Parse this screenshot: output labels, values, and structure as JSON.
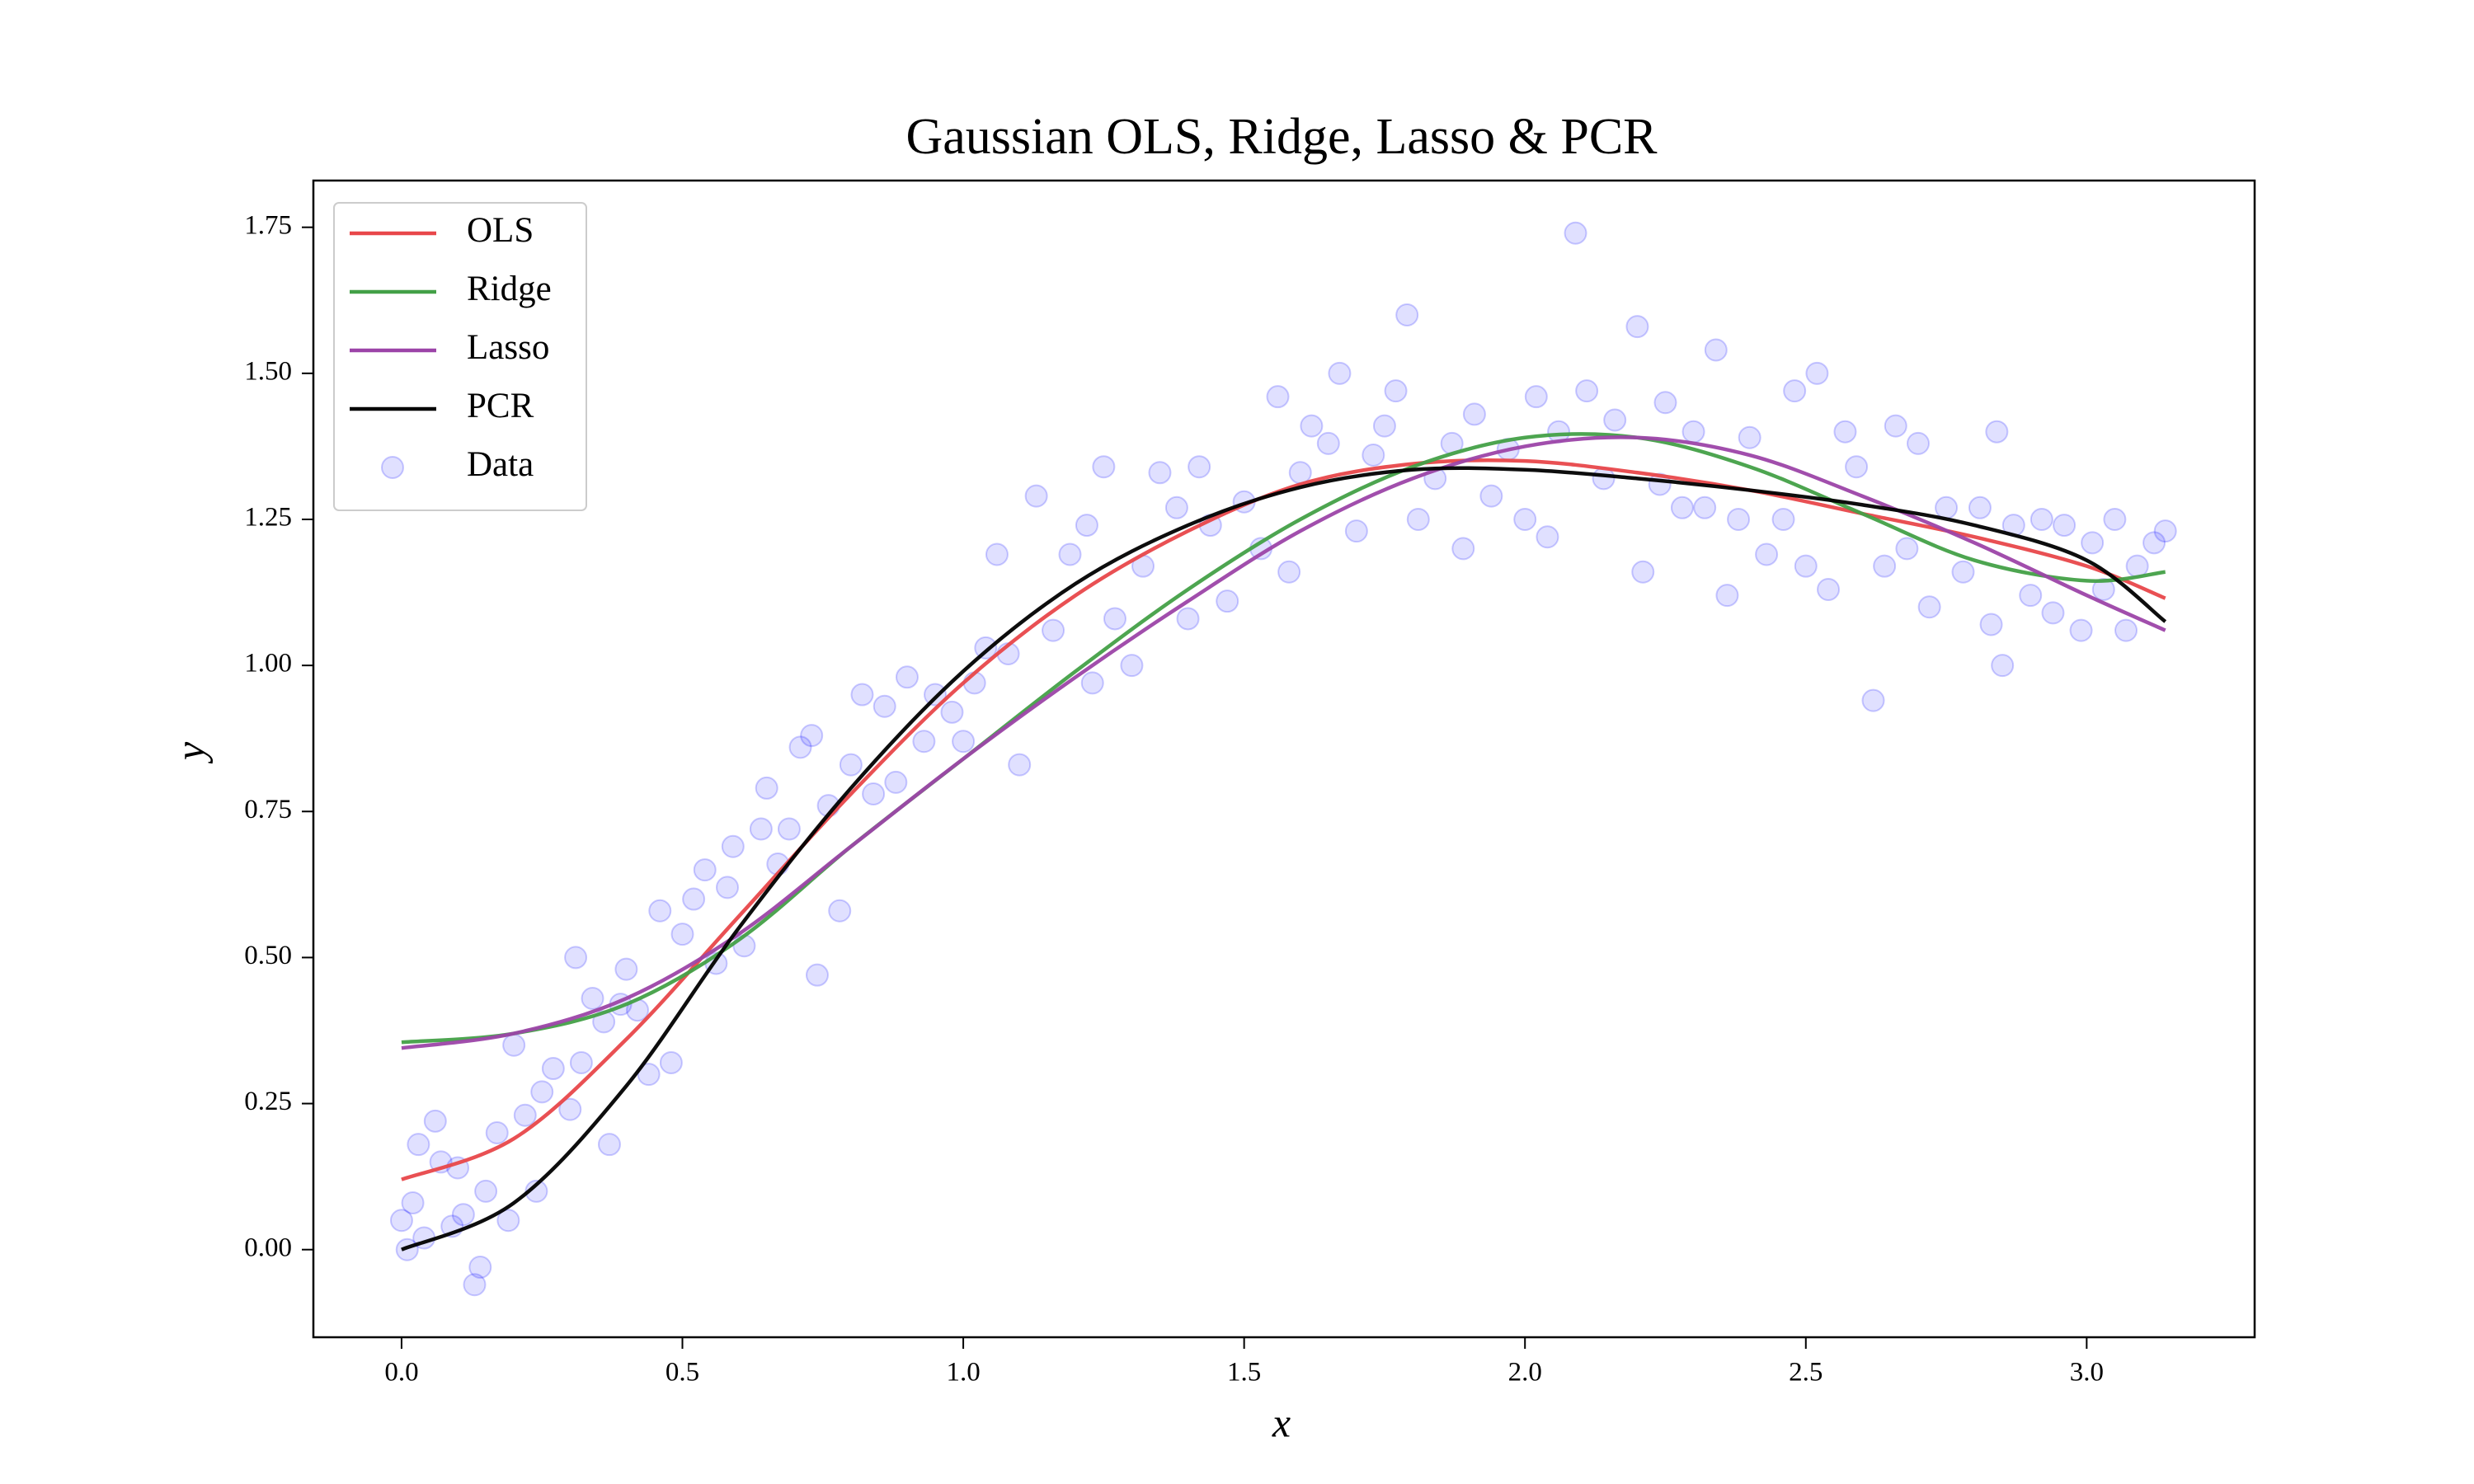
{
  "chart_data": {
    "type": "line",
    "title": "Gaussian OLS, Ridge, Lasso & PCR",
    "xlabel": "x",
    "ylabel": "y",
    "x": [
      0,
      0.2,
      0.4,
      0.6,
      0.8,
      1.0,
      1.2,
      1.4,
      1.6,
      1.8,
      2.0,
      2.2,
      2.4,
      2.6,
      2.8,
      3.0,
      3.14
    ],
    "series": [
      {
        "name": "OLS",
        "color": "#e8474a",
        "values": [
          0.12,
          0.19,
          0.36,
          0.57,
          0.78,
          0.97,
          1.12,
          1.23,
          1.31,
          1.345,
          1.35,
          1.33,
          1.3,
          1.26,
          1.22,
          1.17,
          1.115
        ]
      },
      {
        "name": "Ridge",
        "color": "#43a047",
        "values": [
          0.355,
          0.37,
          0.42,
          0.53,
          0.69,
          0.84,
          0.99,
          1.13,
          1.25,
          1.34,
          1.39,
          1.39,
          1.34,
          1.26,
          1.18,
          1.145,
          1.16
        ]
      },
      {
        "name": "Lasso",
        "color": "#9c44a8",
        "values": [
          0.345,
          0.37,
          0.43,
          0.54,
          0.69,
          0.84,
          0.98,
          1.11,
          1.23,
          1.32,
          1.375,
          1.39,
          1.36,
          1.29,
          1.21,
          1.12,
          1.06
        ]
      },
      {
        "name": "PCR",
        "color": "#000000",
        "values": [
          0.0,
          0.08,
          0.28,
          0.55,
          0.79,
          0.99,
          1.14,
          1.24,
          1.305,
          1.335,
          1.335,
          1.32,
          1.3,
          1.275,
          1.24,
          1.18,
          1.075
        ]
      }
    ],
    "scatter": {
      "name": "Data",
      "color": "#0000ff",
      "x": [
        0.0,
        0.01,
        0.02,
        0.03,
        0.04,
        0.06,
        0.07,
        0.09,
        0.1,
        0.11,
        0.13,
        0.14,
        0.15,
        0.17,
        0.19,
        0.2,
        0.22,
        0.24,
        0.25,
        0.27,
        0.3,
        0.31,
        0.32,
        0.34,
        0.36,
        0.37,
        0.39,
        0.4,
        0.42,
        0.44,
        0.46,
        0.48,
        0.5,
        0.52,
        0.54,
        0.56,
        0.58,
        0.59,
        0.61,
        0.64,
        0.65,
        0.67,
        0.69,
        0.71,
        0.73,
        0.74,
        0.76,
        0.78,
        0.8,
        0.82,
        0.84,
        0.86,
        0.88,
        0.9,
        0.93,
        0.95,
        0.98,
        1.0,
        1.02,
        1.04,
        1.06,
        1.08,
        1.1,
        1.13,
        1.16,
        1.19,
        1.22,
        1.23,
        1.25,
        1.27,
        1.3,
        1.32,
        1.35,
        1.38,
        1.4,
        1.42,
        1.44,
        1.47,
        1.5,
        1.53,
        1.56,
        1.58,
        1.6,
        1.62,
        1.65,
        1.67,
        1.7,
        1.73,
        1.75,
        1.77,
        1.79,
        1.81,
        1.84,
        1.87,
        1.89,
        1.91,
        1.94,
        1.97,
        2.0,
        2.02,
        2.04,
        2.06,
        2.09,
        2.11,
        2.14,
        2.16,
        2.2,
        2.21,
        2.24,
        2.25,
        2.28,
        2.3,
        2.32,
        2.34,
        2.36,
        2.38,
        2.4,
        2.43,
        2.46,
        2.48,
        2.5,
        2.52,
        2.54,
        2.57,
        2.59,
        2.62,
        2.64,
        2.66,
        2.68,
        2.7,
        2.72,
        2.75,
        2.78,
        2.81,
        2.83,
        2.84,
        2.85,
        2.87,
        2.9,
        2.92,
        2.94,
        2.96,
        2.99,
        3.01,
        3.03,
        3.05,
        3.07,
        3.09,
        3.12,
        3.14
      ],
      "y": [
        0.05,
        0.0,
        0.08,
        0.18,
        0.02,
        0.22,
        0.15,
        0.04,
        0.14,
        0.06,
        -0.06,
        -0.03,
        0.1,
        0.2,
        0.05,
        0.35,
        0.23,
        0.1,
        0.27,
        0.31,
        0.24,
        0.5,
        0.32,
        0.43,
        0.39,
        0.18,
        0.42,
        0.48,
        0.41,
        0.3,
        0.58,
        0.32,
        0.54,
        0.6,
        0.65,
        0.49,
        0.62,
        0.69,
        0.52,
        0.72,
        0.79,
        0.66,
        0.72,
        0.86,
        0.88,
        0.47,
        0.76,
        0.58,
        0.83,
        0.95,
        0.78,
        0.93,
        0.8,
        0.98,
        0.87,
        0.95,
        0.92,
        0.87,
        0.97,
        1.03,
        1.19,
        1.02,
        0.83,
        1.29,
        1.06,
        1.19,
        1.24,
        0.97,
        1.34,
        1.08,
        1.0,
        1.17,
        1.33,
        1.27,
        1.08,
        1.34,
        1.24,
        1.11,
        1.28,
        1.2,
        1.46,
        1.16,
        1.33,
        1.41,
        1.38,
        1.5,
        1.23,
        1.36,
        1.41,
        1.47,
        1.6,
        1.25,
        1.32,
        1.38,
        1.2,
        1.43,
        1.29,
        1.37,
        1.25,
        1.46,
        1.22,
        1.4,
        1.74,
        1.47,
        1.32,
        1.42,
        1.58,
        1.16,
        1.31,
        1.45,
        1.27,
        1.4,
        1.27,
        1.54,
        1.12,
        1.25,
        1.39,
        1.19,
        1.25,
        1.47,
        1.17,
        1.5,
        1.13,
        1.4,
        1.34,
        0.94,
        1.17,
        1.41,
        1.2,
        1.38,
        1.1,
        1.27,
        1.16,
        1.27,
        1.07,
        1.4,
        1.0,
        1.24,
        1.12,
        1.25,
        1.09,
        1.24,
        1.06,
        1.21,
        1.13,
        1.25,
        1.06,
        1.17,
        1.21,
        1.23
      ]
    },
    "xlim": [
      -0.157,
      3.299
    ],
    "ylim": [
      -0.15,
      1.83
    ],
    "xticks": [
      {
        "value": 0,
        "label": "0.0"
      },
      {
        "value": 0.5,
        "label": "0.5"
      },
      {
        "value": 1,
        "label": "1.0"
      },
      {
        "value": 1.5,
        "label": "1.5"
      },
      {
        "value": 2,
        "label": "2.0"
      },
      {
        "value": 2.5,
        "label": "2.5"
      },
      {
        "value": 3,
        "label": "3.0"
      }
    ],
    "yticks": [
      {
        "value": 0,
        "label": "0.00"
      },
      {
        "value": 0.25,
        "label": "0.25"
      },
      {
        "value": 0.5,
        "label": "0.50"
      },
      {
        "value": 0.75,
        "label": "0.75"
      },
      {
        "value": 1,
        "label": "1.00"
      },
      {
        "value": 1.25,
        "label": "1.25"
      },
      {
        "value": 1.5,
        "label": "1.50"
      },
      {
        "value": 1.75,
        "label": "1.75"
      }
    ],
    "legend": "upper left"
  }
}
